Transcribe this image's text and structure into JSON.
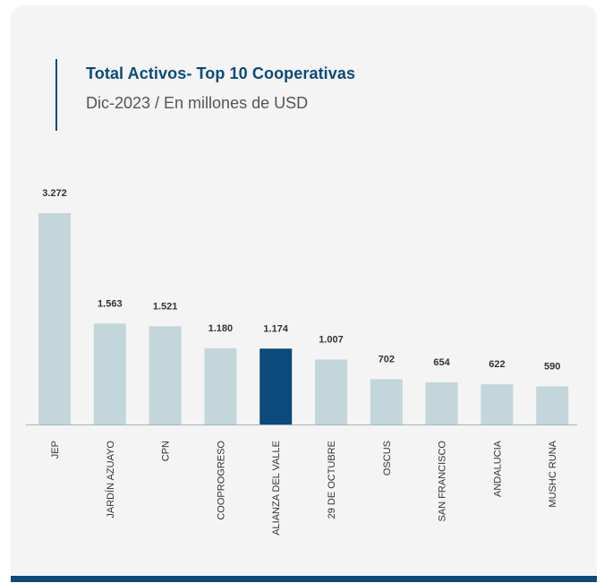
{
  "header": {
    "title": "Total Activos- Top 10 Cooperativas",
    "subtitle": "Dic-2023 / En millones de USD"
  },
  "colors": {
    "bar": "#c3d6db",
    "highlight": "#0b4a7a",
    "axis": "#9fb8c0",
    "value_label": "#333333",
    "category_label": "#333333"
  },
  "chart_data": {
    "type": "bar",
    "categories": [
      "JEP",
      "JARDÍN AZUAYO",
      "CPN",
      "COOPROGRESO",
      "ALIANZA DEL VALLE",
      "29 DE OCTUBRE",
      "OSCUS",
      "SAN FRANCISCO",
      "ANDALUCIA",
      "MUSHC RUNA"
    ],
    "values": [
      3272,
      1563,
      1521,
      1180,
      1174,
      1007,
      702,
      654,
      622,
      590
    ],
    "value_labels": [
      "3.272",
      "1.563",
      "1.521",
      "1.180",
      "1.174",
      "1.007",
      "702",
      "654",
      "622",
      "590"
    ],
    "highlight_index": 4,
    "title": "Total Activos- Top 10 Cooperativas",
    "subtitle": "Dic-2023 / En millones de USD",
    "ylim": [
      0,
      3272
    ],
    "grid": false,
    "legend": "none"
  }
}
